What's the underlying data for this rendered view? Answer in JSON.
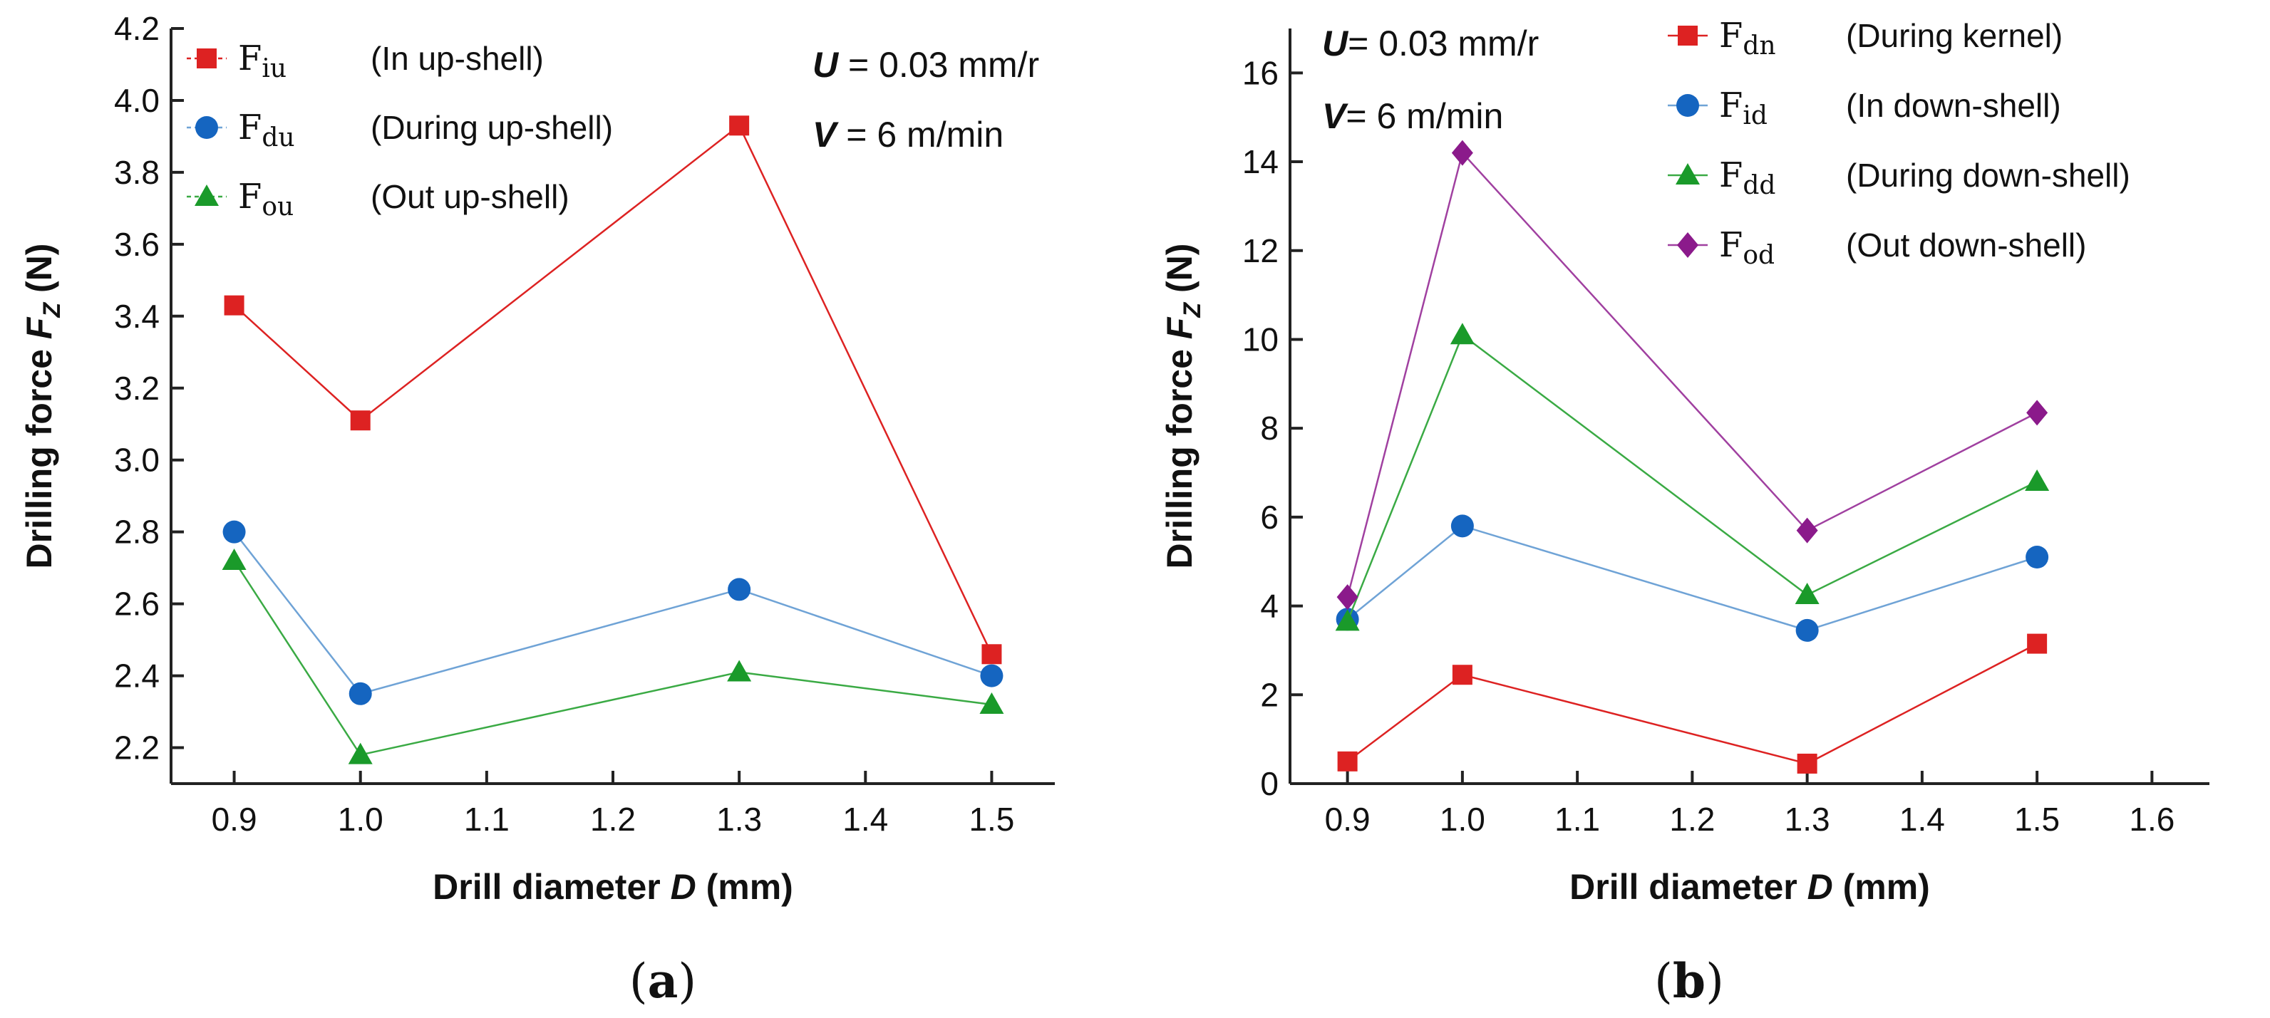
{
  "chart_data": [
    {
      "type": "line",
      "panel_label": "(a)",
      "xlabel_prefix": "Drill diameter ",
      "xlabel_var": "D",
      "xlabel_suffix": " (mm)",
      "ylabel_prefix": "Drilling force ",
      "ylabel_var": "F",
      "ylabel_sub": "Z",
      "ylabel_suffix": " (N)",
      "xlim": [
        0.85,
        1.55
      ],
      "ylim": [
        2.1,
        4.2
      ],
      "xticks": [
        0.9,
        1.0,
        1.1,
        1.2,
        1.3,
        1.4,
        1.5
      ],
      "xtick_labels": [
        "0.9",
        "1.0",
        "1.1",
        "1.2",
        "1.3",
        "1.4",
        "1.5"
      ],
      "yticks": [
        2.2,
        2.4,
        2.6,
        2.8,
        3.0,
        3.2,
        3.4,
        3.6,
        3.8,
        4.0,
        4.2
      ],
      "ytick_labels": [
        "2.2",
        "2.4",
        "2.6",
        "2.8",
        "3.0",
        "3.2",
        "3.4",
        "3.6",
        "3.8",
        "4.0",
        "4.2"
      ],
      "conditions": [
        {
          "var": "U",
          "text": " = 0.03 mm/r"
        },
        {
          "var": "V",
          "text": " = 6 m/min"
        }
      ],
      "x": [
        0.9,
        1.0,
        1.3,
        1.5
      ],
      "series": [
        {
          "name": "F",
          "sub": "iu",
          "desc": "(In up-shell)",
          "marker": "square",
          "color": "#dd2222",
          "values": [
            3.43,
            3.11,
            3.93,
            2.46
          ]
        },
        {
          "name": "F",
          "sub": "du",
          "desc": "(During up-shell)",
          "marker": "circle",
          "color": "#1565c0",
          "line_color": "#6fa3d6",
          "values": [
            2.8,
            2.35,
            2.64,
            2.4
          ]
        },
        {
          "name": "F",
          "sub": "ou",
          "desc": "(Out up-shell)",
          "marker": "triangle",
          "color": "#1a9a2a",
          "line_color": "#3aaa44",
          "values": [
            2.72,
            2.18,
            2.41,
            2.32
          ]
        }
      ]
    },
    {
      "type": "line",
      "panel_label": "(b)",
      "xlabel_prefix": "Drill diameter ",
      "xlabel_var": "D",
      "xlabel_suffix": " (mm)",
      "ylabel_prefix": "Drilling force ",
      "ylabel_var": "F",
      "ylabel_sub": "Z",
      "ylabel_suffix": " (N)",
      "xlim": [
        0.85,
        1.65
      ],
      "ylim": [
        0,
        17
      ],
      "xticks": [
        0.9,
        1.0,
        1.1,
        1.2,
        1.3,
        1.4,
        1.5,
        1.6
      ],
      "xtick_labels": [
        "0.9",
        "1.0",
        "1.1",
        "1.2",
        "1.3",
        "1.4",
        "1.5",
        "1.6"
      ],
      "yticks": [
        0,
        2,
        4,
        6,
        8,
        10,
        12,
        14,
        16
      ],
      "ytick_labels": [
        "0",
        "2",
        "4",
        "6",
        "8",
        "10",
        "12",
        "14",
        "16"
      ],
      "conditions": [
        {
          "var": "U",
          "text": "= 0.03 mm/r"
        },
        {
          "var": "V",
          "text": "= 6 m/min"
        }
      ],
      "x": [
        0.9,
        1.0,
        1.3,
        1.5
      ],
      "series": [
        {
          "name": "F",
          "sub": "dn",
          "desc": "(During kernel)",
          "marker": "square",
          "color": "#dd2222",
          "values": [
            0.5,
            2.45,
            0.45,
            3.15
          ]
        },
        {
          "name": "F",
          "sub": "id",
          "desc": "(In down-shell)",
          "marker": "circle",
          "color": "#1565c0",
          "line_color": "#6fa3d6",
          "values": [
            3.7,
            5.8,
            3.45,
            5.1
          ]
        },
        {
          "name": "F",
          "sub": "dd",
          "desc": "(During down-shell)",
          "marker": "triangle",
          "color": "#1a9a2a",
          "line_color": "#3aaa44",
          "values": [
            3.65,
            10.1,
            4.25,
            6.8
          ]
        },
        {
          "name": "F",
          "sub": "od",
          "desc": "(Out down-shell)",
          "marker": "diamond",
          "color": "#8b1a8b",
          "line_color": "#a040a0",
          "values": [
            4.2,
            14.2,
            5.7,
            8.35
          ]
        }
      ]
    }
  ]
}
